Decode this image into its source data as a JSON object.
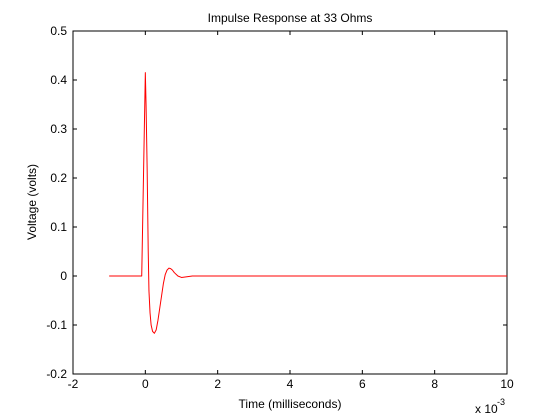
{
  "chart_data": {
    "type": "line",
    "title": "Impulse Response at 33 Ohms",
    "xlabel": "Time (milliseconds)",
    "ylabel": "Voltage (volts)",
    "x_exponent_base": "x 10",
    "x_exponent_power": "-3",
    "xlim": [
      -0.002,
      0.01
    ],
    "ylim": [
      -0.2,
      0.5
    ],
    "xticks": [
      -0.002,
      0,
      0.002,
      0.004,
      0.006,
      0.008,
      0.01
    ],
    "xtick_labels": [
      "-2",
      "0",
      "2",
      "4",
      "6",
      "8",
      "10"
    ],
    "yticks": [
      -0.2,
      -0.1,
      0,
      0.1,
      0.2,
      0.3,
      0.4,
      0.5
    ],
    "ytick_labels": [
      "-0.2",
      "-0.1",
      "0",
      "0.1",
      "0.2",
      "0.3",
      "0.4",
      "0.5"
    ],
    "grid": false,
    "series": [
      {
        "name": "impulse response",
        "color": "#ff0000",
        "x": [
          -0.001,
          -0.0001,
          0,
          2e-05,
          5e-05,
          8e-05,
          0.0001,
          0.00013,
          0.00016,
          0.0002,
          0.00025,
          0.0003,
          0.00035,
          0.0004,
          0.00045,
          0.0005,
          0.00055,
          0.0006,
          0.00065,
          0.0007,
          0.00075,
          0.0008,
          0.0009,
          0.001,
          0.0011,
          0.0012,
          0.0013,
          0.0015,
          0.002,
          0.004,
          0.006,
          0.008,
          0.01
        ],
        "y": [
          0,
          0,
          0.415,
          0.35,
          0.22,
          0.05,
          -0.03,
          -0.075,
          -0.1,
          -0.113,
          -0.117,
          -0.11,
          -0.09,
          -0.065,
          -0.04,
          -0.015,
          0.003,
          0.012,
          0.016,
          0.015,
          0.012,
          0.007,
          0.0,
          -0.003,
          -0.002,
          -0.001,
          0,
          0,
          0,
          0,
          0,
          0,
          0
        ]
      }
    ]
  }
}
